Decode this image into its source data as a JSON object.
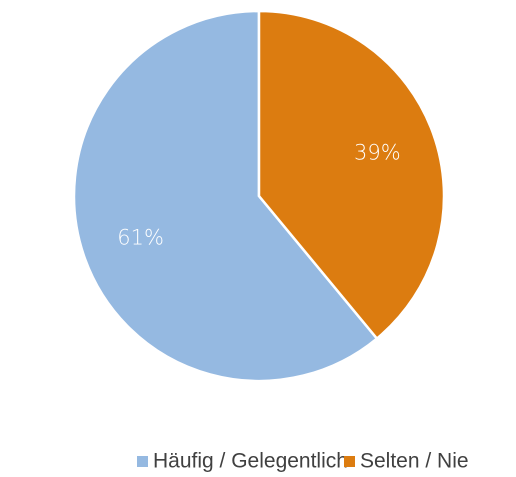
{
  "chart_data": {
    "type": "pie",
    "categories": [
      "Häufig / Gelegentlich",
      "Selten / Nie"
    ],
    "values": [
      61,
      39
    ],
    "value_labels": [
      "61%",
      "39%"
    ],
    "colors": [
      "#95b9e1",
      "#dc7c10"
    ],
    "direction": "counterclockwise",
    "legend": "bottom"
  }
}
